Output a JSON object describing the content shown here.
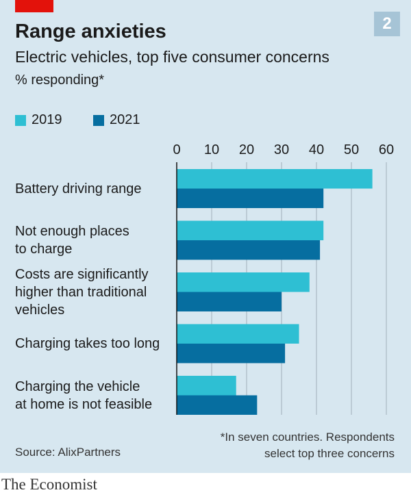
{
  "header": {
    "title": "Range anxieties",
    "subtitle": "Electric vehicles, top five consumer concerns",
    "unit": "% responding*",
    "badge": "2"
  },
  "chart_data": {
    "type": "bar",
    "orientation": "horizontal",
    "title": "Range anxieties",
    "subtitle": "Electric vehicles, top five consumer concerns",
    "xlabel": "% responding*",
    "categories": [
      "Battery driving range",
      "Not enough places\nto charge",
      "Costs are significantly\nhigher than traditional\nvehicles",
      "Charging takes too long",
      "Charging the vehicle\nat home is not feasible"
    ],
    "series": [
      {
        "name": "2019",
        "color": "#2ebfd3",
        "values": [
          56,
          42,
          38,
          35,
          17
        ]
      },
      {
        "name": "2021",
        "color": "#066ea0",
        "values": [
          42,
          41,
          30,
          31,
          23
        ]
      }
    ],
    "xlim": [
      0,
      60
    ],
    "ticks": [
      "0",
      "10",
      "20",
      "30",
      "40",
      "50",
      "60"
    ],
    "grid": true,
    "legend": "top-left"
  },
  "footer": {
    "note_line1": "*In seven countries. Respondents",
    "note_line2": "select top three concerns",
    "source": "Source: AlixPartners",
    "brand": "The Economist"
  }
}
